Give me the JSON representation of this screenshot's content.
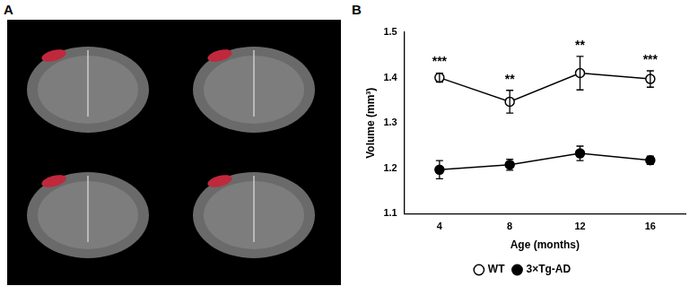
{
  "panel_labels": [
    "A",
    "B"
  ],
  "chart_data": {
    "type": "line",
    "x_label": "Age (months)",
    "y_label": "Volume (mm³)",
    "categories": [
      "4",
      "8",
      "12",
      "16"
    ],
    "series": [
      {
        "name": "WT",
        "color": "#000000",
        "marker": "circle-open",
        "values": [
          1.4,
          1.347,
          1.41,
          1.397
        ],
        "errors": [
          0.01,
          0.025,
          0.037,
          0.018
        ]
      },
      {
        "name": "3×Tg-AD",
        "color": "#000000",
        "marker": "circle",
        "values": [
          1.197,
          1.208,
          1.233,
          1.218
        ],
        "errors": [
          0.02,
          0.012,
          0.016,
          0.009
        ]
      }
    ],
    "annotations": [
      {
        "category": "4",
        "text": "***"
      },
      {
        "category": "8",
        "text": "**"
      },
      {
        "category": "12",
        "text": "**"
      },
      {
        "category": "16",
        "text": "***"
      }
    ],
    "ylim": [
      1.1,
      1.5
    ],
    "yticks": [
      1.1,
      1.2,
      1.3,
      1.4,
      1.5
    ],
    "grid": false,
    "legend": "bottom"
  }
}
